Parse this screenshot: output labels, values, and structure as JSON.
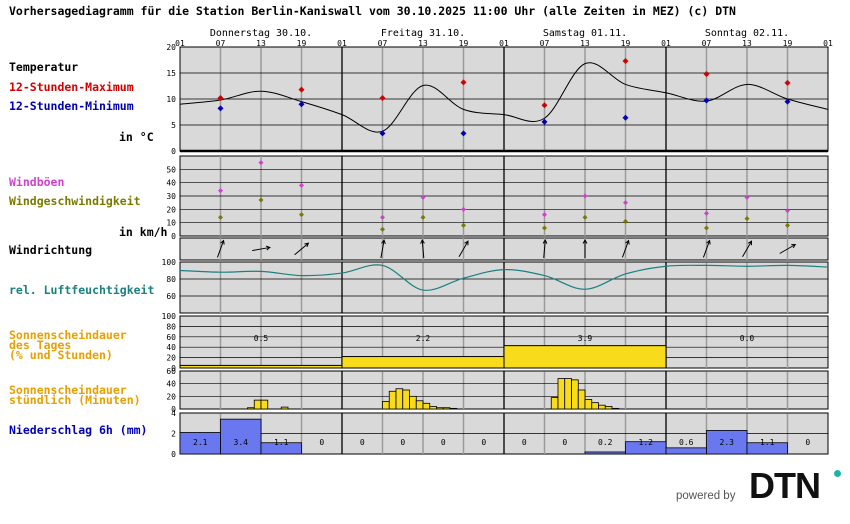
{
  "title": "Vorhersagediagramm für die Station Berlin-Kaniswall vom 30.10.2025 11:00 Uhr (alle Zeiten in MEZ)   (c) DTN",
  "days": [
    "Donnerstag 30.10.",
    "Freitag 31.10.",
    "Samstag 01.11.",
    "Sonntag 02.11."
  ],
  "hour_ticks": [
    "01",
    "07",
    "13",
    "19"
  ],
  "end_tick": "01",
  "labels": {
    "temperatur": "Temperatur",
    "max": "12-Stunden-Maximum",
    "min": "12-Stunden-Minimum",
    "unit_temp": "in °C",
    "windboeen": "Windböen",
    "windgeschw": "Windgeschwindigkeit",
    "unit_wind": "in km/h",
    "windrichtung": "Windrichtung",
    "feuchte": "rel. Luftfeuchtigkeit",
    "sonne_tag_1": "Sonnenscheindauer",
    "sonne_tag_2": "des Tages",
    "sonne_tag_3": "(% und Stunden)",
    "sonne_std_1": "Sonnenscheindauer",
    "sonne_std_2": "stündlich (Minuten)",
    "niederschlag": "Niederschlag 6h (mm)"
  },
  "footer": {
    "powered": "powered by",
    "brand": "DTN"
  },
  "colors": {
    "panel_bg": "#d9d9d9",
    "max": "#d40000",
    "min": "#0000b4",
    "boeen": "#d040d0",
    "wind": "#7a7a00",
    "humidity": "#1a8080",
    "sun": "#f8dc1c",
    "sun_label": "#e8a000",
    "rain": "#6a78f0",
    "rain_label": "#0000b4"
  },
  "chart_data": [
    {
      "type": "line",
      "title": "Temperatur",
      "ylabel": "in °C",
      "ylim": [
        0,
        20
      ],
      "yticks": [
        0,
        5,
        10,
        15,
        20
      ],
      "x_unit": "hours since 30.10. 01:00",
      "series": [
        {
          "name": "Temperatur",
          "x": [
            0,
            6,
            12,
            18,
            24,
            30,
            36,
            42,
            48,
            54,
            60,
            66,
            72,
            78,
            84,
            90,
            96
          ],
          "values": [
            9,
            9.8,
            11.5,
            9.5,
            7,
            3.8,
            12.6,
            8,
            7,
            6.3,
            16.8,
            12.8,
            11.2,
            9.6,
            12.8,
            10,
            8
          ]
        },
        {
          "name": "12-Stunden-Maximum",
          "x": [
            6,
            18,
            30,
            42,
            54,
            66,
            78,
            90
          ],
          "values": [
            10.2,
            11.8,
            10.2,
            13.2,
            8.8,
            17.3,
            14.8,
            13.1
          ]
        },
        {
          "name": "12-Stunden-Minimum",
          "x": [
            6,
            18,
            30,
            42,
            54,
            66,
            78,
            90
          ],
          "values": [
            8.2,
            9,
            3.4,
            3.4,
            5.6,
            6.4,
            9.7,
            9.5
          ]
        }
      ]
    },
    {
      "type": "scatter",
      "ylabel": "in km/h",
      "ylim": [
        0,
        60
      ],
      "yticks": [
        0,
        10,
        20,
        30,
        40,
        50
      ],
      "series": [
        {
          "name": "Windböen",
          "x": [
            6,
            12,
            18,
            30,
            36,
            42,
            54,
            60,
            66,
            78,
            84,
            90
          ],
          "values": [
            34,
            55,
            38,
            14,
            29,
            20,
            16,
            30,
            25,
            17,
            29,
            19
          ]
        },
        {
          "name": "Windgeschwindigkeit",
          "x": [
            6,
            12,
            18,
            30,
            36,
            42,
            54,
            60,
            66,
            78,
            84,
            90
          ],
          "values": [
            14,
            27,
            16,
            5,
            14,
            8,
            6,
            14,
            11,
            6,
            13,
            8
          ]
        }
      ]
    },
    {
      "type": "line",
      "title": "Windrichtung",
      "x": [
        6,
        12,
        18,
        30,
        36,
        42,
        54,
        60,
        66,
        78,
        84,
        90
      ],
      "direction_deg": [
        200,
        260,
        230,
        190,
        175,
        210,
        185,
        180,
        200,
        200,
        210,
        240
      ]
    },
    {
      "type": "line",
      "title": "rel. Luftfeuchtigkeit",
      "ylim": [
        40,
        100
      ],
      "yticks": [
        60,
        80,
        100
      ],
      "series": [
        {
          "name": "rel. Luftfeuchtigkeit",
          "x": [
            0,
            6,
            12,
            18,
            24,
            30,
            36,
            42,
            48,
            54,
            60,
            66,
            72,
            78,
            84,
            90,
            96
          ],
          "values": [
            90,
            88,
            89,
            84,
            87,
            96,
            67,
            81,
            91,
            84,
            68,
            86,
            95,
            96,
            95,
            96,
            94
          ]
        }
      ]
    },
    {
      "type": "bar",
      "title": "Sonnenscheindauer des Tages (% und Stunden)",
      "ylim": [
        0,
        100
      ],
      "yticks": [
        0,
        20,
        40,
        60,
        80,
        100
      ],
      "categories": [
        "30.10.",
        "31.10.",
        "01.11.",
        "02.11."
      ],
      "values": [
        5,
        22,
        43,
        0
      ],
      "hours_labels": [
        "0.5",
        "2.2",
        "3.9",
        "0.0"
      ]
    },
    {
      "type": "bar",
      "title": "Sonnenscheindauer stündlich (Minuten)",
      "ylim": [
        0,
        60
      ],
      "yticks": [
        0,
        20,
        40,
        60
      ],
      "series": [
        {
          "name": "Minuten",
          "x": [
            10,
            11,
            12,
            14,
            15,
            16,
            17,
            18,
            19,
            20,
            21,
            22,
            23,
            24,
            25,
            26,
            27,
            28,
            29,
            30,
            31,
            32,
            33,
            34,
            35,
            36,
            37,
            38,
            39,
            40,
            41,
            42,
            43,
            44,
            45,
            46,
            47,
            48,
            49,
            50,
            51,
            52,
            53,
            54,
            55,
            56,
            57,
            58,
            59,
            60,
            61,
            62,
            63,
            64,
            65,
            66,
            67,
            68
          ],
          "values": [
            0,
            0,
            0,
            0,
            0,
            0,
            0,
            0,
            0,
            0,
            0,
            0,
            0,
            0,
            0,
            0,
            0,
            0,
            0,
            0,
            0,
            0,
            0,
            0,
            0,
            0,
            0,
            0,
            0,
            0,
            0,
            0,
            0,
            0,
            0,
            0,
            0,
            0,
            0,
            0,
            0,
            0,
            0,
            0,
            0,
            0,
            0,
            0,
            0,
            0,
            0,
            0,
            0,
            0,
            0,
            0,
            0,
            0
          ]
        },
        {
          "name": "Sonne",
          "x": [
            10,
            11,
            12,
            15,
            30,
            31,
            32,
            33,
            34,
            35,
            36,
            37,
            38,
            39,
            40,
            55,
            56,
            57,
            58,
            59,
            60,
            61,
            62,
            63,
            64
          ],
          "values": [
            2,
            14,
            14,
            3,
            12,
            28,
            32,
            30,
            20,
            13,
            9,
            4,
            2,
            2,
            1,
            18,
            48,
            48,
            46,
            30,
            15,
            10,
            6,
            4,
            1
          ]
        }
      ]
    },
    {
      "type": "bar",
      "title": "Niederschlag 6h (mm)",
      "ylim": [
        0,
        4
      ],
      "yticks": [
        0,
        2,
        4
      ],
      "categories": [
        "30.10. 01-07",
        "07-13",
        "13-19",
        "19-01",
        "31.10. 01-07",
        "07-13",
        "13-19",
        "19-01",
        "01.11. 01-07",
        "07-13",
        "13-19",
        "19-01",
        "02.11. 01-07",
        "07-13",
        "13-19",
        "19-01"
      ],
      "values": [
        2.1,
        3.4,
        1.1,
        0,
        0,
        0,
        0,
        0,
        0,
        0,
        0.2,
        1.2,
        0.6,
        2.3,
        1.1,
        0
      ],
      "labels": [
        "2.1",
        "3.4",
        "1.1",
        "0",
        "0",
        "0",
        "0",
        "0",
        "0",
        "0",
        "0.2",
        "1.2",
        "0.6",
        "2.3",
        "1.1",
        "0"
      ]
    }
  ]
}
